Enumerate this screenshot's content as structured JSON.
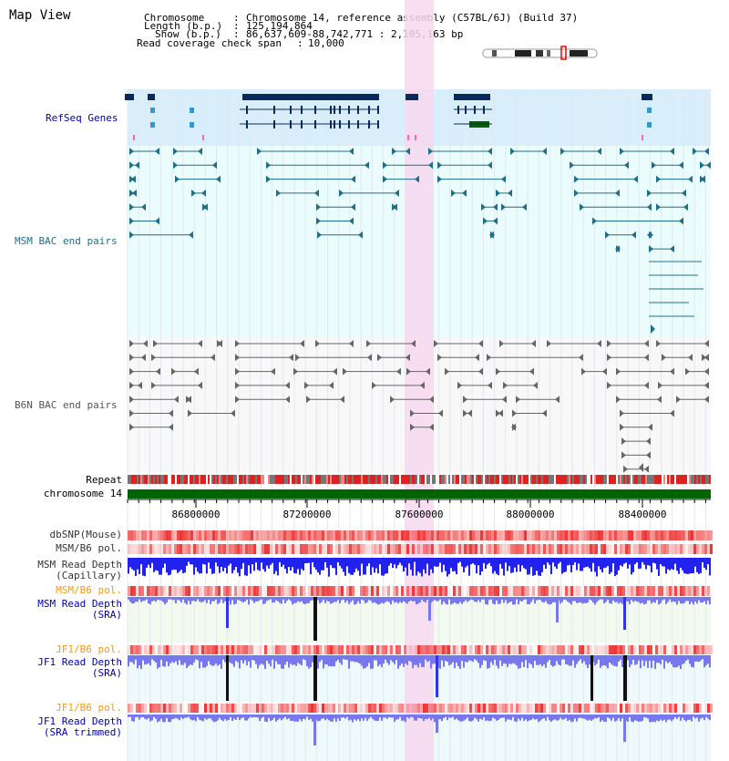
{
  "title": "Map View",
  "header": {
    "chromosome_label": "Chromosome",
    "chromosome_value": "Chromosome 14, reference assembly (C57BL/6J) (Build 37)",
    "length_label": "Length (b.p.)",
    "length_value": "125,194,864",
    "show_label": "Show (b.p.)",
    "show_value": "86,637,609-88,742,771 : 2,105,163 bp",
    "coverage_label": "Read coverage check span",
    "coverage_value": "10,000"
  },
  "view": {
    "start": 86637609,
    "end": 88742771
  },
  "tracks": {
    "refseq": "RefSeq Genes",
    "msm_bac": "MSM BAC end pairs",
    "b6n_bac": "B6N BAC end pairs",
    "repeat": "Repeat",
    "chromosome": "chromosome 14",
    "dbsnp": "dbSNP(Mouse)",
    "msm_b6_pol": "MSM/B6 pol.",
    "msm_depth_cap_1": "MSM Read Depth",
    "msm_depth_cap_2": "(Capillary)",
    "msm_b6_pol_2": "MSM/B6 pol.",
    "msm_depth_sra_1": "MSM Read Depth",
    "msm_depth_sra_2": "(SRA)",
    "jf1_b6_pol": "JF1/B6 pol.",
    "jf1_depth_sra_1": "JF1 Read Depth",
    "jf1_depth_sra_2": "(SRA)",
    "jf1_b6_pol_2": "JF1/B6 pol.",
    "jf1_depth_trim_1": "JF1 Read Depth",
    "jf1_depth_trim_2": "(SRA trimmed)"
  },
  "axis_ticks": [
    "86800000",
    "87200000",
    "87600000",
    "88000000",
    "88400000"
  ],
  "colors": {
    "refseq_bg": "#d8eefa",
    "bac_bg": "#ebfcfc",
    "b6n_bg": "#f8f8f8",
    "highlight": "#f8d8f0",
    "gene": "#0a2a5a",
    "gene_green": "#006400",
    "msm_bac": "#1f6f8b",
    "b6n_bac": "#666666",
    "chromosome": "#006400",
    "snp": "#ee4444",
    "depth": "#3333ee",
    "depth_light": "#7777ee",
    "label_blue": "#0000aa",
    "label_orange": "#ff9900",
    "label_teal": "#1f6f8b",
    "label_gray": "#555555"
  }
}
